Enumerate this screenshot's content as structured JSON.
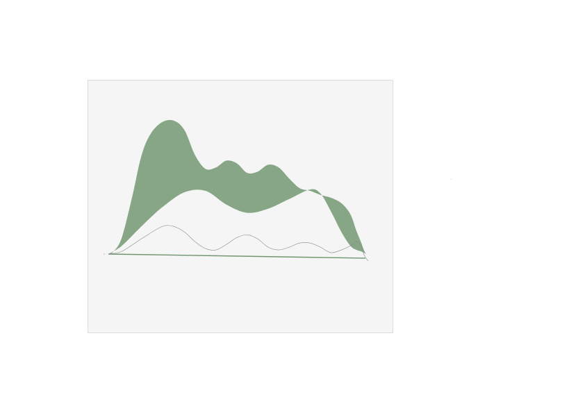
{
  "colors": {
    "page_background": "#ffffff",
    "panel_background": "#f5f5f5",
    "panel_border": "#dcdcdc",
    "band_fill": "#87a686",
    "baseline_stroke": "#6e946d",
    "inner_line_stroke": "#8a8a8a"
  },
  "chart_data": {
    "type": "area",
    "title": "",
    "xlabel": "",
    "ylabel": "",
    "grid": false,
    "legend": "none",
    "xlim": [
      0,
      9
    ],
    "ylim": [
      -0.1,
      1.0
    ],
    "series": [
      {
        "role": "band-upper",
        "style": "filled band",
        "x": [
          0,
          0.18,
          0.45,
          0.8,
          1.1,
          1.4,
          1.8,
          2.2,
          2.55,
          2.9,
          3.25,
          3.6,
          3.95,
          4.3,
          4.65,
          5.0,
          5.35,
          5.7,
          6.05,
          6.4,
          6.75,
          7.1,
          7.45,
          7.8,
          8.1,
          8.3,
          8.45,
          8.55,
          8.62
        ],
        "y": [
          0.0,
          0.02,
          0.12,
          0.42,
          0.71,
          0.87,
          0.96,
          0.97,
          0.9,
          0.72,
          0.62,
          0.63,
          0.68,
          0.66,
          0.59,
          0.6,
          0.65,
          0.63,
          0.55,
          0.48,
          0.46,
          0.43,
          0.41,
          0.37,
          0.29,
          0.17,
          0.09,
          0.03,
          0.0
        ]
      },
      {
        "role": "band-lower",
        "style": "filled band",
        "x": [
          0,
          0.45,
          1.1,
          1.8,
          2.55,
          3.25,
          3.95,
          4.65,
          5.35,
          6.05,
          6.75,
          7.1,
          7.45,
          7.8,
          8.1,
          8.3,
          8.45,
          8.55,
          8.62
        ],
        "y": [
          0.0,
          0.06,
          0.2,
          0.34,
          0.45,
          0.46,
          0.36,
          0.3,
          0.33,
          0.4,
          0.47,
          0.44,
          0.31,
          0.16,
          0.06,
          0.03,
          0.02,
          0.01,
          0.0
        ]
      },
      {
        "role": "inner-line",
        "style": "thin line",
        "x": [
          0,
          0.45,
          1.1,
          1.8,
          2.2,
          2.55,
          2.9,
          3.25,
          3.6,
          3.95,
          4.3,
          4.65,
          5.0,
          5.35,
          5.7,
          6.05,
          6.4,
          6.75,
          7.1,
          7.45,
          7.8,
          8.1,
          8.3,
          8.45,
          8.55,
          8.62,
          8.7
        ],
        "y": [
          0.0,
          0.02,
          0.11,
          0.2,
          0.2,
          0.16,
          0.09,
          0.04,
          0.03,
          0.07,
          0.12,
          0.14,
          0.11,
          0.05,
          0.03,
          0.05,
          0.08,
          0.08,
          0.05,
          0.01,
          0.03,
          0.06,
          0.09,
          0.06,
          0.0,
          -0.03,
          -0.05
        ]
      },
      {
        "role": "baseline",
        "style": "thin line",
        "x": [
          0,
          8.6
        ],
        "y": [
          0.0,
          -0.03
        ]
      }
    ]
  }
}
